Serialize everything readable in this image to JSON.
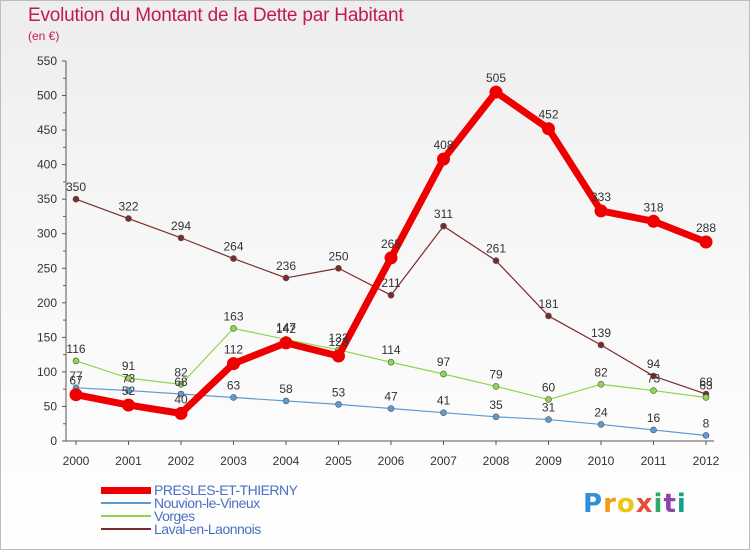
{
  "title": "Evolution du Montant de la Dette par Habitant",
  "subtitle": "(en €)",
  "logo": "Proxiti",
  "chart_data": {
    "type": "line",
    "title": "Evolution du Montant de la Dette par Habitant",
    "subtitle": "(en €)",
    "x": [
      "2000",
      "2001",
      "2002",
      "2003",
      "2004",
      "2005",
      "2006",
      "2007",
      "2008",
      "2009",
      "2010",
      "2011",
      "2012"
    ],
    "yticks": [
      0,
      50,
      100,
      150,
      200,
      250,
      300,
      350,
      400,
      450,
      500,
      550
    ],
    "ylim": [
      0,
      550
    ],
    "grid": false,
    "legend_position": "bottom",
    "series": [
      {
        "name": "PRESLES-ET-THIERNY",
        "color": "#ee0000",
        "values": [
          67,
          52,
          40,
          112,
          142,
          123,
          265,
          408,
          505,
          452,
          333,
          318,
          288
        ]
      },
      {
        "name": "Nouvion-le-Vineux",
        "color": "#5b9bd5",
        "values": [
          77,
          73,
          68,
          63,
          58,
          53,
          47,
          41,
          35,
          31,
          24,
          16,
          8
        ]
      },
      {
        "name": "Vorges",
        "color": "#8ed64c",
        "values": [
          116,
          91,
          82,
          163,
          147,
          132,
          114,
          97,
          79,
          60,
          82,
          73,
          63
        ]
      },
      {
        "name": "Laval-en-Laonnois",
        "color": "#7b2b2b",
        "values": [
          350,
          322,
          294,
          264,
          236,
          250,
          211,
          311,
          261,
          181,
          139,
          94,
          68
        ]
      }
    ]
  }
}
